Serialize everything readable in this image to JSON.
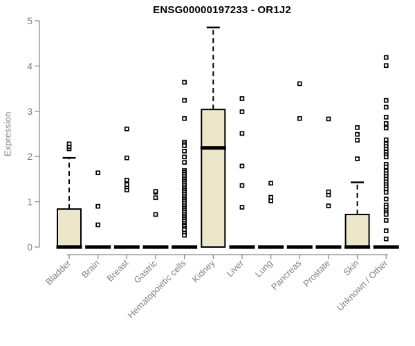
{
  "header": {
    "title": "ENSG00000197233 - OR1J2"
  },
  "colors": {
    "box_fill": "#ece6cb",
    "box_stroke": "#000000",
    "median": "#000000",
    "whisker": "#000000",
    "outlier_fill": "#ffffff",
    "outlier_stroke": "#000000",
    "axis": "#8a8a8a",
    "tick_label": "#808080",
    "title": "#000000",
    "background": "#ffffff"
  },
  "chart_data": {
    "type": "boxplot",
    "title": "ENSG00000197233 - OR1J2",
    "xlabel": "",
    "ylabel": "Expression",
    "ylim": [
      0,
      5
    ],
    "yticks": [
      0,
      1,
      2,
      3,
      4,
      5
    ],
    "grid": false,
    "legend": false,
    "categories": [
      "Bladder",
      "Brain",
      "Breast",
      "Gastric",
      "Hematopoietic cells",
      "Kidney",
      "Liver",
      "Lung",
      "Pancreas",
      "Prostate",
      "Skin",
      "Unknown / Other"
    ],
    "series": [
      {
        "name": "Bladder",
        "whisker_low": 0,
        "q1": 0,
        "median": 0,
        "q3": 0.84,
        "whisker_high": 1.97,
        "outliers": [
          2.17,
          2.22,
          2.28
        ]
      },
      {
        "name": "Brain",
        "whisker_low": 0,
        "q1": 0,
        "median": 0,
        "q3": 0,
        "whisker_high": 0,
        "outliers": [
          0.49,
          0.9,
          1.64
        ]
      },
      {
        "name": "Breast",
        "whisker_low": 0,
        "q1": 0,
        "median": 0,
        "q3": 0,
        "whisker_high": 0,
        "outliers": [
          1.26,
          1.33,
          1.38,
          1.48,
          1.97,
          2.61
        ]
      },
      {
        "name": "Gastric",
        "whisker_low": 0,
        "q1": 0,
        "median": 0,
        "q3": 0,
        "whisker_high": 0,
        "outliers": [
          0.72,
          1.09,
          1.21,
          1.23
        ]
      },
      {
        "name": "Hematopoietic cells",
        "whisker_low": 0,
        "q1": 0,
        "median": 0,
        "q3": 0,
        "whisker_high": 0,
        "outliers": [
          3.64,
          3.24,
          2.84,
          2.32,
          2.28,
          2.24,
          2.12,
          1.99,
          1.87,
          1.69,
          1.65,
          1.61,
          1.57,
          1.53,
          1.49,
          1.45,
          1.41,
          1.37,
          1.33,
          1.29,
          1.25,
          1.21,
          1.17,
          1.13,
          1.09,
          1.05,
          1.01,
          0.97,
          0.93,
          0.89,
          0.85,
          0.81,
          0.77,
          0.73,
          0.69,
          0.65,
          0.61,
          0.57,
          0.53,
          0.49,
          0.46,
          0.41,
          0.38,
          0.31,
          0.26
        ]
      },
      {
        "name": "Kidney",
        "whisker_low": 0,
        "q1": 0,
        "median": 2.19,
        "q3": 3.04,
        "whisker_high": 4.85,
        "outliers": []
      },
      {
        "name": "Liver",
        "whisker_low": 0,
        "q1": 0,
        "median": 0,
        "q3": 0,
        "whisker_high": 0,
        "outliers": [
          0.88,
          1.36,
          1.79,
          2.51,
          2.99,
          3.28
        ]
      },
      {
        "name": "Lung",
        "whisker_low": 0,
        "q1": 0,
        "median": 0,
        "q3": 0,
        "whisker_high": 0,
        "outliers": [
          1.02,
          1.1,
          1.41
        ]
      },
      {
        "name": "Pancreas",
        "whisker_low": 0,
        "q1": 0,
        "median": 0,
        "q3": 0,
        "whisker_high": 0,
        "outliers": [
          2.84,
          3.61
        ]
      },
      {
        "name": "Prostate",
        "whisker_low": 0,
        "q1": 0,
        "median": 0,
        "q3": 0,
        "whisker_high": 0,
        "outliers": [
          0.91,
          1.15,
          1.22,
          2.83
        ]
      },
      {
        "name": "Skin",
        "whisker_low": 0,
        "q1": 0,
        "median": 0,
        "q3": 0.72,
        "whisker_high": 1.43,
        "outliers": [
          1.95,
          2.36,
          2.49,
          2.64
        ]
      },
      {
        "name": "Unknown / Other",
        "whisker_low": 0,
        "q1": 0,
        "median": 0,
        "q3": 0,
        "whisker_high": 0,
        "outliers": [
          4.19,
          4.01,
          3.24,
          3.09,
          2.87,
          2.73,
          2.63,
          2.37,
          2.28,
          2.22,
          2.16,
          2.1,
          2.04,
          1.99,
          1.83,
          1.77,
          1.68,
          1.62,
          1.56,
          1.5,
          1.44,
          1.38,
          1.33,
          1.28,
          1.21,
          1.06,
          0.93,
          0.88,
          0.81,
          0.76,
          0.72,
          0.59,
          0.36,
          0.18
        ]
      }
    ]
  }
}
